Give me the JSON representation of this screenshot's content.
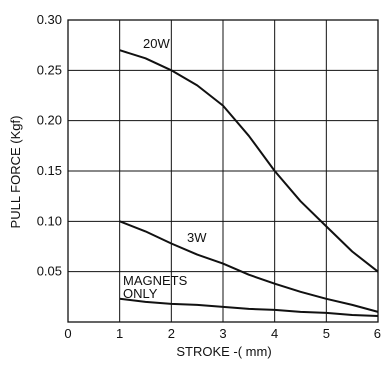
{
  "chart_data": {
    "type": "line",
    "xlabel": "STROKE -( mm)",
    "ylabel": "PULL FORCE (Kgf)",
    "xlim": [
      0,
      6
    ],
    "ylim": [
      0,
      0.3
    ],
    "x_ticks": [
      "0",
      "1",
      "2",
      "3",
      "4",
      "5",
      "6"
    ],
    "y_ticks": [
      "0.30",
      "0.25",
      "0.20",
      "0.15",
      "0.10",
      "0.05"
    ],
    "grid": true,
    "series": [
      {
        "name": "20W",
        "points": [
          [
            1,
            0.27
          ],
          [
            1.5,
            0.262
          ],
          [
            2,
            0.25
          ],
          [
            2.5,
            0.235
          ],
          [
            3,
            0.215
          ],
          [
            3.5,
            0.185
          ],
          [
            4,
            0.15
          ],
          [
            4.5,
            0.12
          ],
          [
            5,
            0.095
          ],
          [
            5.5,
            0.07
          ],
          [
            6,
            0.05
          ]
        ]
      },
      {
        "name": "3W",
        "points": [
          [
            1,
            0.1
          ],
          [
            1.5,
            0.09
          ],
          [
            2,
            0.078
          ],
          [
            2.5,
            0.067
          ],
          [
            3,
            0.058
          ],
          [
            3.5,
            0.047
          ],
          [
            4,
            0.038
          ],
          [
            4.5,
            0.03
          ],
          [
            5,
            0.023
          ],
          [
            5.5,
            0.017
          ],
          [
            6,
            0.01
          ]
        ]
      },
      {
        "name": "MAGNETS ONLY",
        "points": [
          [
            1,
            0.023
          ],
          [
            1.5,
            0.02
          ],
          [
            2,
            0.018
          ],
          [
            2.5,
            0.017
          ],
          [
            3,
            0.015
          ],
          [
            3.5,
            0.013
          ],
          [
            4,
            0.012
          ],
          [
            4.5,
            0.01
          ],
          [
            5,
            0.009
          ],
          [
            5.5,
            0.007
          ],
          [
            6,
            0.006
          ]
        ]
      }
    ],
    "annotations": {
      "label_20w": "20W",
      "label_3w": "3W",
      "label_magnets_1": "MAGNETS",
      "label_magnets_2": "ONLY"
    },
    "colors": {
      "line": "#111111",
      "grid": "#111111"
    }
  }
}
